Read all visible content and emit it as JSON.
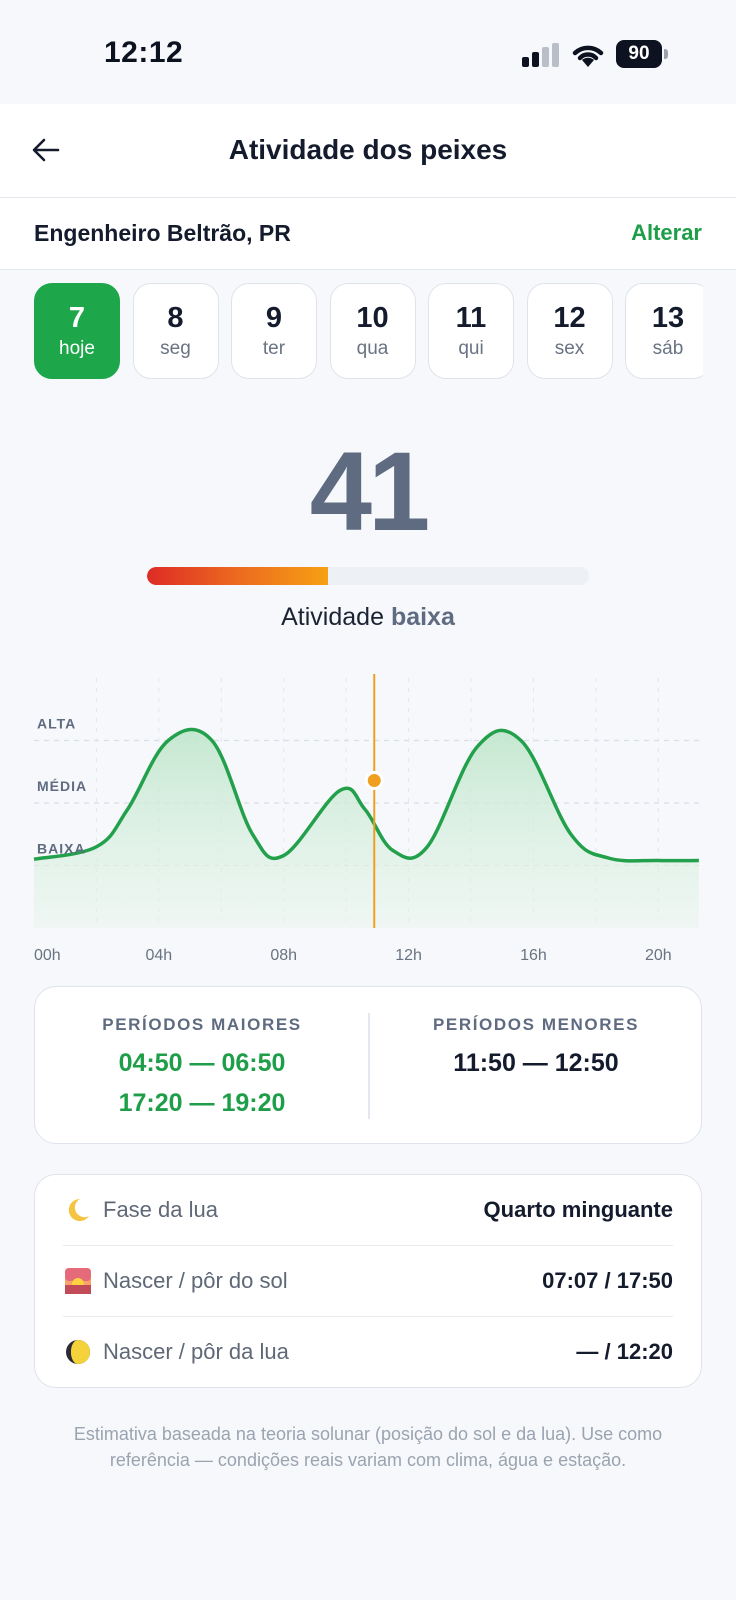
{
  "status_bar": {
    "time": "12:12",
    "battery": "90"
  },
  "header": {
    "title": "Atividade dos peixes"
  },
  "location": {
    "name": "Engenheiro Beltrão, PR",
    "change_label": "Alterar"
  },
  "days": [
    {
      "num": "7",
      "label": "hoje",
      "active": true
    },
    {
      "num": "8",
      "label": "seg",
      "active": false
    },
    {
      "num": "9",
      "label": "ter",
      "active": false
    },
    {
      "num": "10",
      "label": "qua",
      "active": false
    },
    {
      "num": "11",
      "label": "qui",
      "active": false
    },
    {
      "num": "12",
      "label": "sex",
      "active": false
    },
    {
      "num": "13",
      "label": "sáb",
      "active": false
    }
  ],
  "score": {
    "value": "41",
    "fraction": 0.41,
    "label_prefix": "Atividade",
    "level": "baixa"
  },
  "chart_data": {
    "type": "area",
    "y_levels": [
      "ALTA",
      "MÉDIA",
      "BAIXA"
    ],
    "x_tick_labels": [
      "00h",
      "04h",
      "08h",
      "12h",
      "16h",
      "20h"
    ],
    "x": [
      0,
      2,
      3,
      4.3,
      5.7,
      7,
      8,
      9.8,
      10.6,
      11.5,
      12.6,
      14.2,
      15.6,
      17.2,
      18.4,
      20,
      21.3
    ],
    "values": [
      0.05,
      0.15,
      0.45,
      1.0,
      1.0,
      0.25,
      0.08,
      0.6,
      0.45,
      0.12,
      0.15,
      0.95,
      1.0,
      0.25,
      0.06,
      0.04,
      0.04
    ],
    "ylim": [
      -0.5,
      1.5
    ],
    "xlim": [
      0,
      21.4
    ],
    "current_x": 10.9,
    "current_value": 0.68,
    "colors": {
      "line": "#23a04b",
      "marker": "#f0a020",
      "now_line": "#f0a020"
    }
  },
  "periods": {
    "major": {
      "title": "PERÍODOS MAIORES",
      "times": [
        "04:50 — 06:50",
        "17:20 — 19:20"
      ]
    },
    "minor": {
      "title": "PERÍODOS MENORES",
      "times": [
        "11:50 — 12:50"
      ]
    }
  },
  "info": [
    {
      "icon": "moon-crescent-icon",
      "label": "Fase da lua",
      "value": "Quarto minguante"
    },
    {
      "icon": "sunrise-icon",
      "label": "Nascer / pôr do sol",
      "value": "07:07 / 17:50"
    },
    {
      "icon": "moon-phase-icon",
      "label": "Nascer / pôr da lua",
      "value": "— / 12:20"
    }
  ],
  "disclaimer": "Estimativa baseada na teoria solunar (posição do sol e da lua). Use como referência — condições reais variam com clima, água e estação.",
  "colors": {
    "accent": "#1ea64b",
    "score": "#5f6b81"
  }
}
